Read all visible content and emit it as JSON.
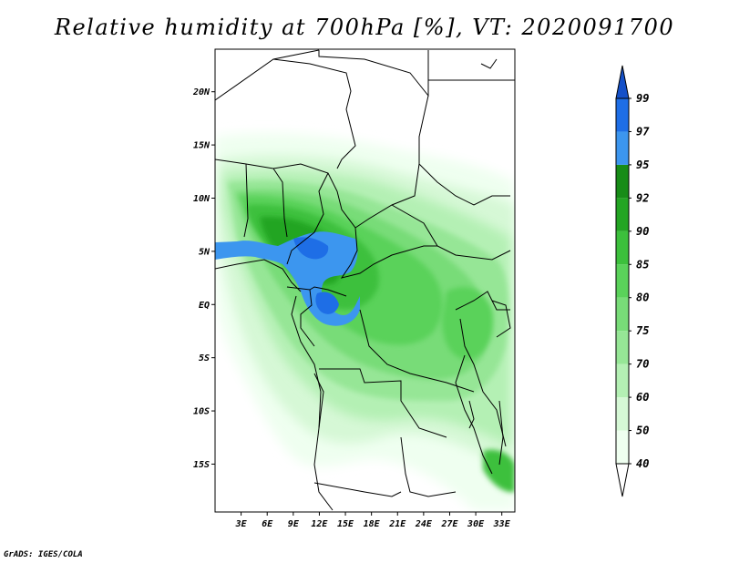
{
  "title": "Relative humidity at 700hPa [%], VT: 2020091700",
  "credit": "GrADS: IGES/COLA",
  "map": {
    "lon_range": [
      0,
      34.5
    ],
    "lat_range": [
      -19.5,
      24
    ],
    "lat_ticks": [
      {
        "value": 20,
        "label": "20N"
      },
      {
        "value": 15,
        "label": "15N"
      },
      {
        "value": 10,
        "label": "10N"
      },
      {
        "value": 5,
        "label": "5N"
      },
      {
        "value": 0,
        "label": "EQ"
      },
      {
        "value": -5,
        "label": "5S"
      },
      {
        "value": -10,
        "label": "10S"
      },
      {
        "value": -15,
        "label": "15S"
      }
    ],
    "lon_ticks": [
      {
        "value": 3,
        "label": "3E"
      },
      {
        "value": 6,
        "label": "6E"
      },
      {
        "value": 9,
        "label": "9E"
      },
      {
        "value": 12,
        "label": "12E"
      },
      {
        "value": 15,
        "label": "15E"
      },
      {
        "value": 18,
        "label": "18E"
      },
      {
        "value": 21,
        "label": "21E"
      },
      {
        "value": 24,
        "label": "24E"
      },
      {
        "value": 27,
        "label": "27E"
      },
      {
        "value": 30,
        "label": "30E"
      },
      {
        "value": 33,
        "label": "33E"
      }
    ]
  },
  "colorbar": {
    "levels": [
      "40",
      "50",
      "60",
      "70",
      "75",
      "80",
      "85",
      "90",
      "92",
      "95",
      "97",
      "99"
    ],
    "colors": [
      "#effff0",
      "#d6f8d6",
      "#b4f0b4",
      "#96e696",
      "#78dc78",
      "#5ad25a",
      "#3cc03c",
      "#23a523",
      "#178c17",
      "#3c96ef",
      "#1e6ee6",
      "#1450c8"
    ],
    "under_color": "#ffffff",
    "over_color": "#1450c8"
  },
  "colors": {
    "boundary": "#000000",
    "land_low": "#effff0"
  }
}
